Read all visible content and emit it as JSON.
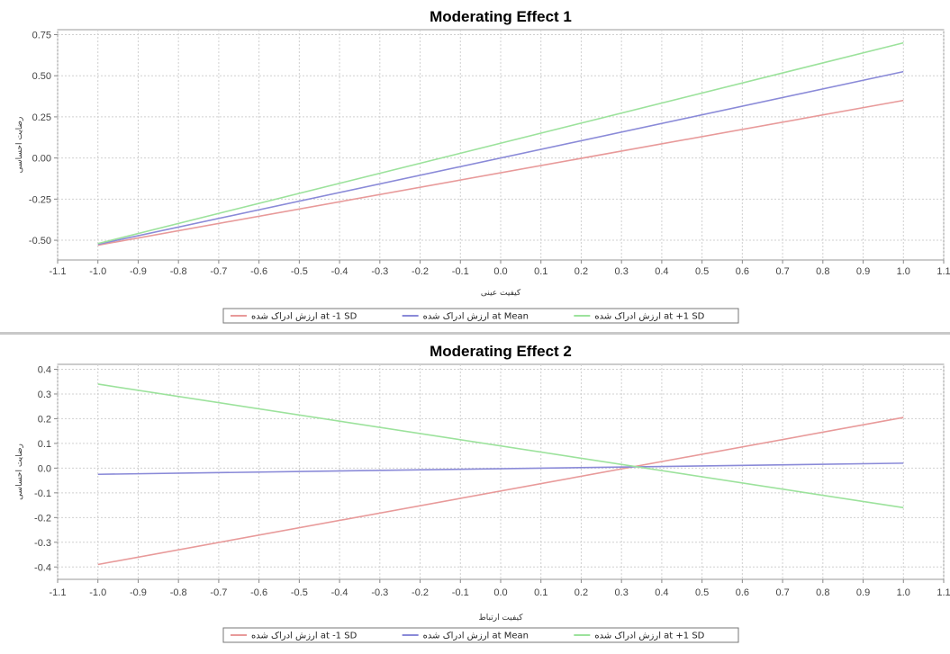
{
  "chart_data": [
    {
      "type": "line",
      "title": "Moderating Effect 1",
      "xlabel": "کیفیت عینی",
      "ylabel": "رضایت احساسی",
      "xlim": [
        -1.1,
        1.1
      ],
      "ylim": [
        -0.62,
        0.78
      ],
      "xticks": [
        "-1.1",
        "-1.0",
        "-0.9",
        "-0.8",
        "-0.7",
        "-0.6",
        "-0.5",
        "-0.4",
        "-0.3",
        "-0.2",
        "-0.1",
        "0.0",
        "0.1",
        "0.2",
        "0.3",
        "0.4",
        "0.5",
        "0.6",
        "0.7",
        "0.8",
        "0.9",
        "1.0",
        "1.1"
      ],
      "yticks": [
        "0.75",
        "0.50",
        "0.25",
        "0.00",
        "-0.25",
        "-0.50"
      ],
      "grid": true,
      "legend_position": "bottom",
      "series": [
        {
          "name": "ارزش ادراک شده at -1 SD",
          "color": "#e89a9a",
          "x": [
            -1.0,
            1.0
          ],
          "y": [
            -0.53,
            0.35
          ]
        },
        {
          "name": "ارزش ادراک شده at Mean",
          "color": "#8a8ad8",
          "x": [
            -1.0,
            1.0
          ],
          "y": [
            -0.525,
            0.525
          ]
        },
        {
          "name": "ارزش ادراک شده at +1 SD",
          "color": "#9ce29c",
          "x": [
            -1.0,
            1.0
          ],
          "y": [
            -0.52,
            0.7
          ]
        }
      ]
    },
    {
      "type": "line",
      "title": "Moderating Effect 2",
      "xlabel": "کیفیت ارتباط",
      "ylabel": "رضایت احساسی",
      "xlim": [
        -1.1,
        1.1
      ],
      "ylim": [
        -0.45,
        0.42
      ],
      "xticks": [
        "-1.1",
        "-1.0",
        "-0.9",
        "-0.8",
        "-0.7",
        "-0.6",
        "-0.5",
        "-0.4",
        "-0.3",
        "-0.2",
        "-0.1",
        "0.0",
        "0.1",
        "0.2",
        "0.3",
        "0.4",
        "0.5",
        "0.6",
        "0.7",
        "0.8",
        "0.9",
        "1.0",
        "1.1"
      ],
      "yticks": [
        "0.4",
        "0.3",
        "0.2",
        "0.1",
        "0.0",
        "-0.1",
        "-0.2",
        "-0.3",
        "-0.4"
      ],
      "grid": true,
      "legend_position": "bottom",
      "series": [
        {
          "name": "ارزش ادراک شده at -1 SD",
          "color": "#e89a9a",
          "x": [
            -1.0,
            1.0
          ],
          "y": [
            -0.39,
            0.205
          ]
        },
        {
          "name": "ارزش ادراک شده at Mean",
          "color": "#8a8ad8",
          "x": [
            -1.0,
            1.0
          ],
          "y": [
            -0.025,
            0.02
          ]
        },
        {
          "name": "ارزش ادراک شده at +1 SD",
          "color": "#9ce29c",
          "x": [
            -1.0,
            1.0
          ],
          "y": [
            0.34,
            -0.16
          ]
        }
      ]
    }
  ]
}
